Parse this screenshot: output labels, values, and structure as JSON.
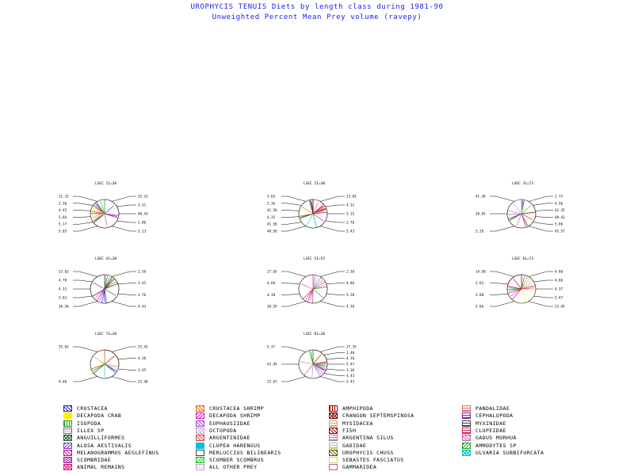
{
  "title": "UROPHYCIS TENUIS Diets by length class during 1981-90",
  "subtitle": "Unweighted Percent Mean Prey volume (ravepy)",
  "chart_data": {
    "type": "pie",
    "note_pies_are_small_multiples_by_length_class": true,
    "pies": [
      {
        "label": "LSEC 11=38",
        "left_values": [
          11.32,
          2.36,
          4.45,
          5.66,
          5.17,
          5.65
        ],
        "right_values": [
          32.15,
          3.31,
          40.43,
          2.86,
          5.23
        ]
      },
      {
        "label": "LSEC 21=38",
        "left_values": [
          5.65,
          2.36,
          41.58,
          4.35,
          41.56,
          40.56
        ],
        "right_values": [
          23.65,
          4.31,
          5.15,
          2.76,
          5.43
        ]
      },
      {
        "label": "LSEC 31=73",
        "left_values": [
          45.36,
          20.65,
          5.26
        ],
        "right_values": [
          2.73,
          4.56,
          42.35,
          40.43,
          5.86,
          45.57
        ]
      },
      {
        "label": "LSEC 41=38",
        "left_values": [
          23.62,
          4.78,
          4.33,
          3.63,
          20.56
        ],
        "right_values": [
          2.56,
          3.45,
          2.76,
          4.43
        ]
      },
      {
        "label": "LSEC 51=55",
        "left_values": [
          27.65,
          4.66,
          4.38,
          20.55
        ],
        "right_values": [
          2.36,
          4.86,
          5.2,
          4.36
        ]
      },
      {
        "label": "LSEC 61=73",
        "left_values": [
          14.58,
          2.63,
          2.88,
          5.66
        ],
        "right_values": [
          4.86,
          4.86,
          4.37,
          3.47,
          23.45
        ]
      },
      {
        "label": "LSEC 71=38",
        "left_values": [
          25.62,
          4.66
        ],
        "right_values": [
          23.41,
          4.36,
          2.45,
          23.46
        ]
      },
      {
        "label": "LSEC 81=38",
        "left_values": [
          5.37,
          43.45,
          23.67
        ],
        "right_values": [
          27.35,
          2.4,
          4.36,
          5.47,
          2.36,
          4.43,
          5.43
        ]
      }
    ],
    "legend_position": "bottom",
    "legend": [
      {
        "name": "CRUSTACEA",
        "color": "#2020c0",
        "pattern": "diag"
      },
      {
        "name": "DECAPODA CRAB",
        "color": "#ffee00",
        "pattern": "solid"
      },
      {
        "name": "ISOPODA",
        "color": "#20a020",
        "pattern": "vert"
      },
      {
        "name": "ILLEX SP",
        "color": "#c040c0",
        "pattern": "dots"
      },
      {
        "name": "ANGUILLIFORMES",
        "color": "#206020",
        "pattern": "cross"
      },
      {
        "name": "ALOSA AESTIVALIS",
        "color": "#8040c0",
        "pattern": "diag2"
      },
      {
        "name": "MELANOGRAMMUS AEGLEFINUS",
        "color": "#c02080",
        "pattern": "diag"
      },
      {
        "name": "SCOMBRIDAE",
        "color": "#a020a0",
        "pattern": "hatch"
      },
      {
        "name": "ANIMAL REMAINS",
        "color": "#d02080",
        "pattern": "cross"
      },
      {
        "name": "CRUSTACEA SHRIMP",
        "color": "#e07000",
        "pattern": "diag"
      },
      {
        "name": "DECAPODA SHRIMP",
        "color": "#e020c0",
        "pattern": "diag2"
      },
      {
        "name": "EUPHAUSIIDAE",
        "color": "#a050d0",
        "pattern": "diag"
      },
      {
        "name": "OCTOPODA",
        "color": "#c0a0e0",
        "pattern": "diag2"
      },
      {
        "name": "ARGENTINIDAE",
        "color": "#e04040",
        "pattern": "diag"
      },
      {
        "name": "CLUPEA HARENGUS",
        "color": "#00c0e0",
        "pattern": "solid"
      },
      {
        "name": "MERLUCCIUS BILINEARIS",
        "color": "#404040",
        "pattern": "none"
      },
      {
        "name": "SCOMBER SCOMBRUS",
        "color": "#20c020",
        "pattern": "diag2"
      },
      {
        "name": "ALL OTHER PREY",
        "color": "#c0a0e0",
        "pattern": "dots"
      },
      {
        "name": "AMPHIPODA",
        "color": "#a00000",
        "pattern": "vert"
      },
      {
        "name": "CRANGON SEPTEMSPINOSA",
        "color": "#800000",
        "pattern": "cross"
      },
      {
        "name": "MYSIDACEA",
        "color": "#c0b080",
        "pattern": "horiz"
      },
      {
        "name": "FISH",
        "color": "#a00000",
        "pattern": "diag"
      },
      {
        "name": "ARGENTINA SILUS",
        "color": "#a080c0",
        "pattern": "horiz"
      },
      {
        "name": "GADIDAE",
        "color": "#c0c080",
        "pattern": "horiz"
      },
      {
        "name": "UROPHYCIS CHUSS",
        "color": "#606000",
        "pattern": "diag"
      },
      {
        "name": "SEBASTES FASCIATUS",
        "color": "#e0c080",
        "pattern": "none"
      },
      {
        "name": "GAMMARIDEA",
        "color": "#c06060",
        "pattern": "none"
      },
      {
        "name": "PANDALIDAE",
        "color": "#d07060",
        "pattern": "horiz"
      },
      {
        "name": "CEPHALOPODA",
        "color": "#8020a0",
        "pattern": "horiz"
      },
      {
        "name": "MYXINIDAE",
        "color": "#404040",
        "pattern": "horiz"
      },
      {
        "name": "CLUPEIDAE",
        "color": "#d02060",
        "pattern": "horiz"
      },
      {
        "name": "GADUS MORHUA",
        "color": "#c060a0",
        "pattern": "diag"
      },
      {
        "name": "AMMODYTES SP",
        "color": "#20a020",
        "pattern": "diag2"
      },
      {
        "name": "ULVARIA SUBBIFURCATA",
        "color": "#00c0c0",
        "pattern": "cross"
      }
    ]
  }
}
